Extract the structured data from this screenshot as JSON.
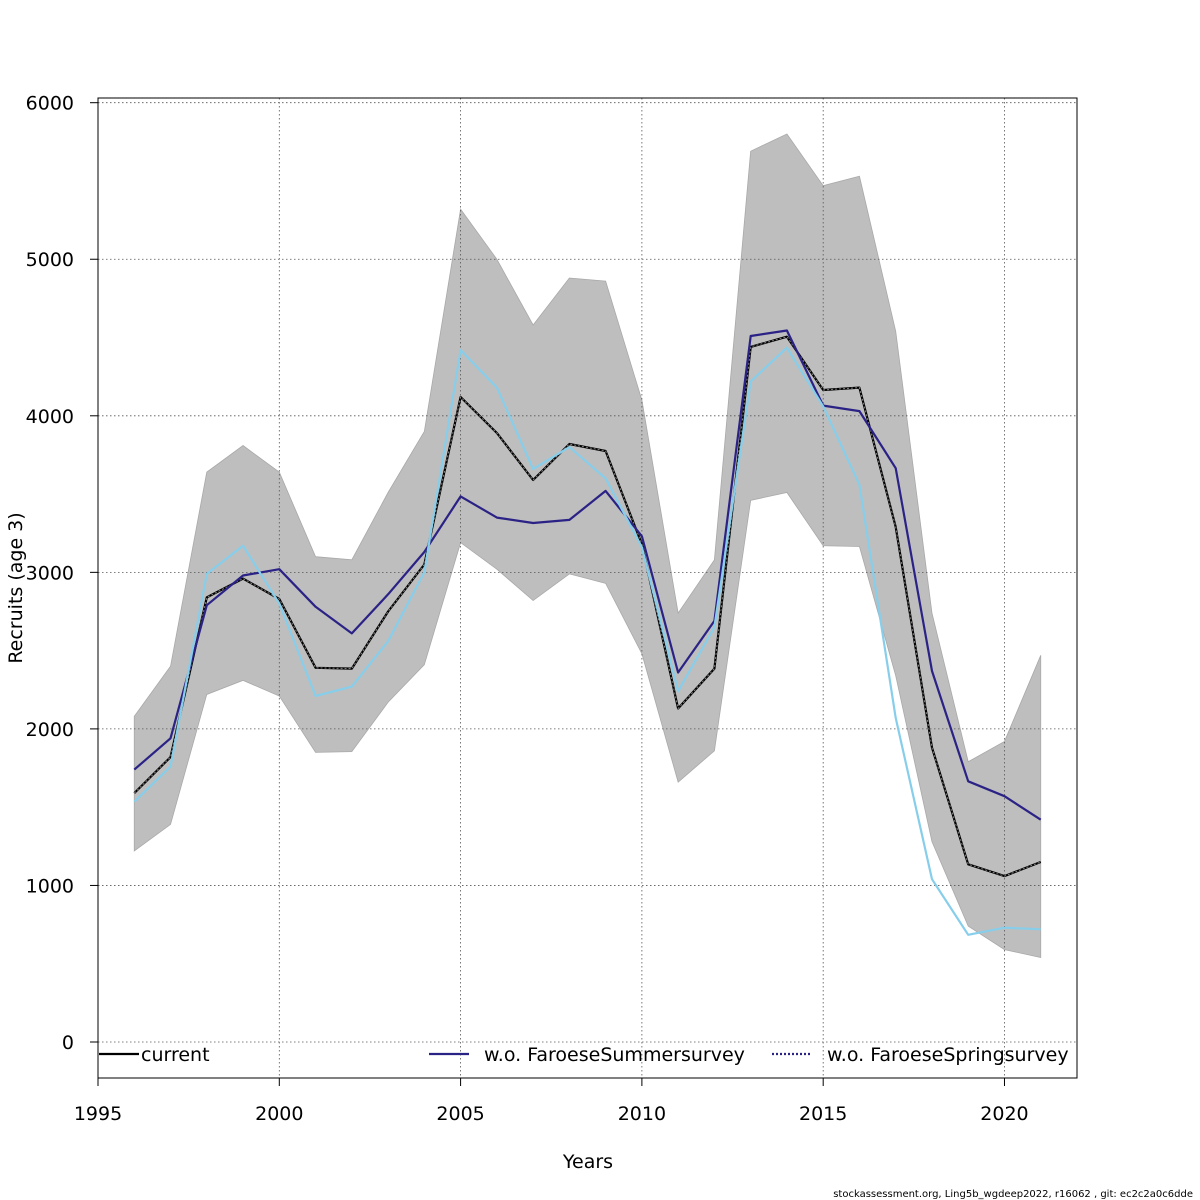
{
  "chart_data": {
    "type": "line",
    "xlabel": "Years",
    "ylabel": "Recruits (age 3)",
    "xlim": [
      1995,
      2022
    ],
    "ylim": [
      -230,
      6030
    ],
    "x_ticks": [
      1995,
      2000,
      2005,
      2010,
      2015,
      2020
    ],
    "y_ticks": [
      0,
      1000,
      2000,
      3000,
      4000,
      5000,
      6000
    ],
    "grid": true,
    "legend_position": "bottom",
    "x": [
      1996,
      1997,
      1998,
      1999,
      2000,
      2001,
      2002,
      2003,
      2004,
      2005,
      2006,
      2007,
      2008,
      2009,
      2010,
      2011,
      2012,
      2013,
      2014,
      2015,
      2016,
      2017,
      2018,
      2019,
      2020,
      2021
    ],
    "confidence_band": {
      "color": "#bebebe",
      "upper": [
        2080,
        2400,
        3640,
        3810,
        3640,
        3100,
        3080,
        3510,
        3900,
        5320,
        5000,
        4580,
        4880,
        4860,
        4100,
        2740,
        3080,
        5690,
        5800,
        5470,
        5530,
        4540,
        2740,
        1790,
        1920,
        2470
      ],
      "lower": [
        1220,
        1390,
        2220,
        2310,
        2210,
        1850,
        1855,
        2170,
        2410,
        3190,
        3020,
        2820,
        2990,
        2930,
        2480,
        1660,
        1860,
        3460,
        3510,
        3170,
        3165,
        2340,
        1280,
        740,
        590,
        540
      ]
    },
    "series": [
      {
        "name": "current",
        "color": "#000000",
        "values": [
          1590,
          1820,
          2840,
          2960,
          2830,
          2390,
          2385,
          2750,
          3050,
          4120,
          3890,
          3590,
          3820,
          3775,
          3180,
          2130,
          2385,
          4440,
          4505,
          4165,
          4180,
          3290,
          1880,
          1135,
          1060,
          1150
        ]
      },
      {
        "name": "w.o. FaroeseSummersurvey",
        "color": "#2b2286",
        "values": [
          1740,
          1940,
          2790,
          2980,
          3020,
          2780,
          2610,
          2860,
          3130,
          3485,
          3350,
          3315,
          3335,
          3520,
          3230,
          2360,
          2690,
          4510,
          4545,
          4065,
          4030,
          3665,
          2370,
          1665,
          1570,
          1420
        ]
      },
      {
        "name": "w.o. FaroeseSpringsurvey",
        "color": "#87ceeb",
        "values": [
          1535,
          1760,
          2990,
          3170,
          2800,
          2210,
          2270,
          2560,
          3000,
          4420,
          4180,
          3660,
          3800,
          3600,
          3160,
          2240,
          2650,
          4220,
          4435,
          4060,
          3560,
          2070,
          1040,
          685,
          730,
          720
        ]
      }
    ]
  },
  "footer_text": "stockassessment.org, Ling5b_wgdeep2022, r16062 , git: ec2c2a0c6dde"
}
